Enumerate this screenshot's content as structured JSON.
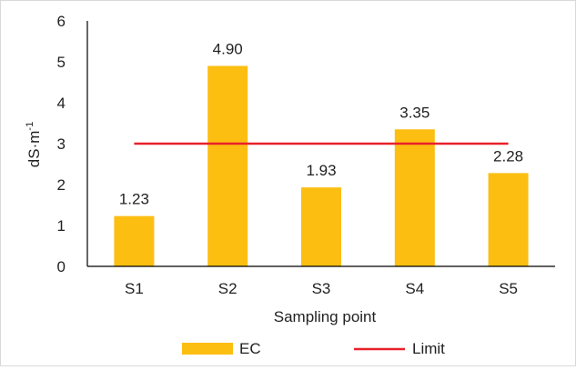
{
  "chart_data": {
    "type": "bar",
    "categories": [
      "S1",
      "S2",
      "S3",
      "S4",
      "S5"
    ],
    "series": [
      {
        "name": "EC",
        "type": "bar",
        "values": [
          1.23,
          4.9,
          1.93,
          3.35,
          2.28
        ],
        "color": "#FDBE12"
      },
      {
        "name": "Limit",
        "type": "line",
        "values": [
          3,
          3,
          3,
          3,
          3
        ],
        "color": "#E8212A"
      }
    ],
    "data_labels": [
      "1.23",
      "4.90",
      "1.93",
      "3.35",
      "2.28"
    ],
    "title": "",
    "xlabel": "Sampling point",
    "ylabel_main": "dS·m",
    "ylabel_superscript": "-1",
    "ylim": [
      0,
      6
    ],
    "yticks": [
      "0",
      "1",
      "2",
      "3",
      "4",
      "5",
      "6"
    ],
    "grid": false,
    "legend_position": "bottom"
  }
}
